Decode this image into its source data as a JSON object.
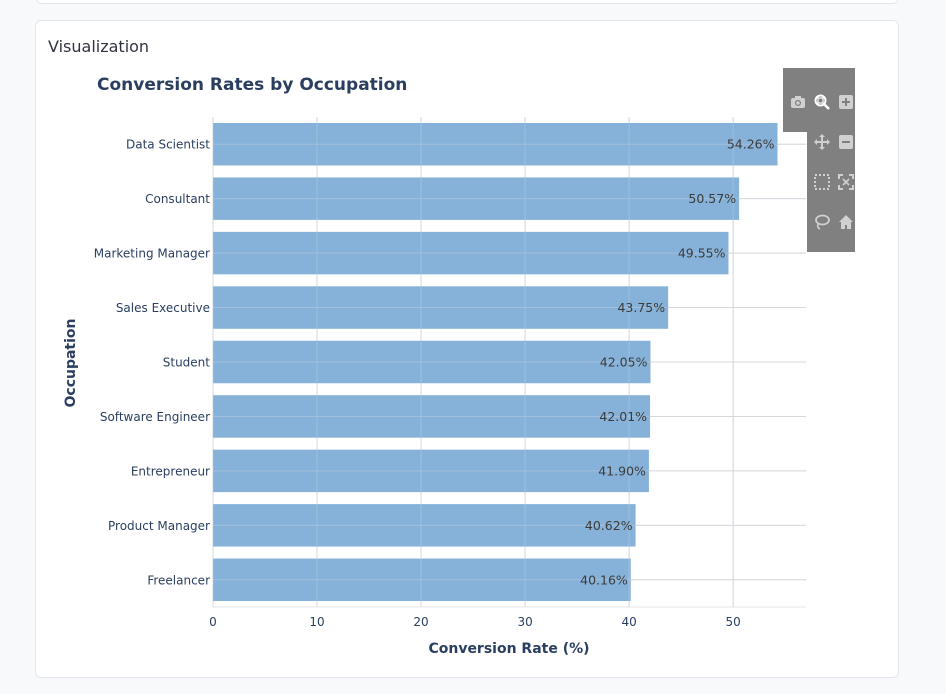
{
  "panel": {
    "heading": "Visualization"
  },
  "modebar": {
    "buttons": [
      "camera-icon",
      "zoom-icon",
      "zoom-in-icon",
      "pan-icon",
      "zoom-out-icon",
      "box-select-icon",
      "autoscale-icon",
      "lasso-select-icon",
      "reset-axes-icon"
    ]
  },
  "colors": {
    "bar": "#86b2d9",
    "title": "#2a3f5f",
    "grid": "#d5d8dc",
    "modebar_bg": "#808080",
    "icon": "#d0d0d0"
  },
  "chart_data": {
    "type": "bar",
    "orientation": "horizontal",
    "title": "Conversion Rates by Occupation",
    "xlabel": "Conversion Rate (%)",
    "ylabel": "Occupation",
    "categories": [
      "Data Scientist",
      "Consultant",
      "Marketing Manager",
      "Sales Executive",
      "Student",
      "Software Engineer",
      "Entrepreneur",
      "Product Manager",
      "Freelancer"
    ],
    "values": [
      54.26,
      50.57,
      49.55,
      43.75,
      42.05,
      42.01,
      41.9,
      40.62,
      40.16
    ],
    "data_labels": [
      "54.26%",
      "50.57%",
      "49.55%",
      "43.75%",
      "42.05%",
      "42.01%",
      "41.90%",
      "40.62%",
      "40.16%"
    ],
    "xticks": [
      0,
      10,
      20,
      30,
      40,
      50
    ],
    "xlim": [
      0,
      57
    ],
    "grid": true
  }
}
